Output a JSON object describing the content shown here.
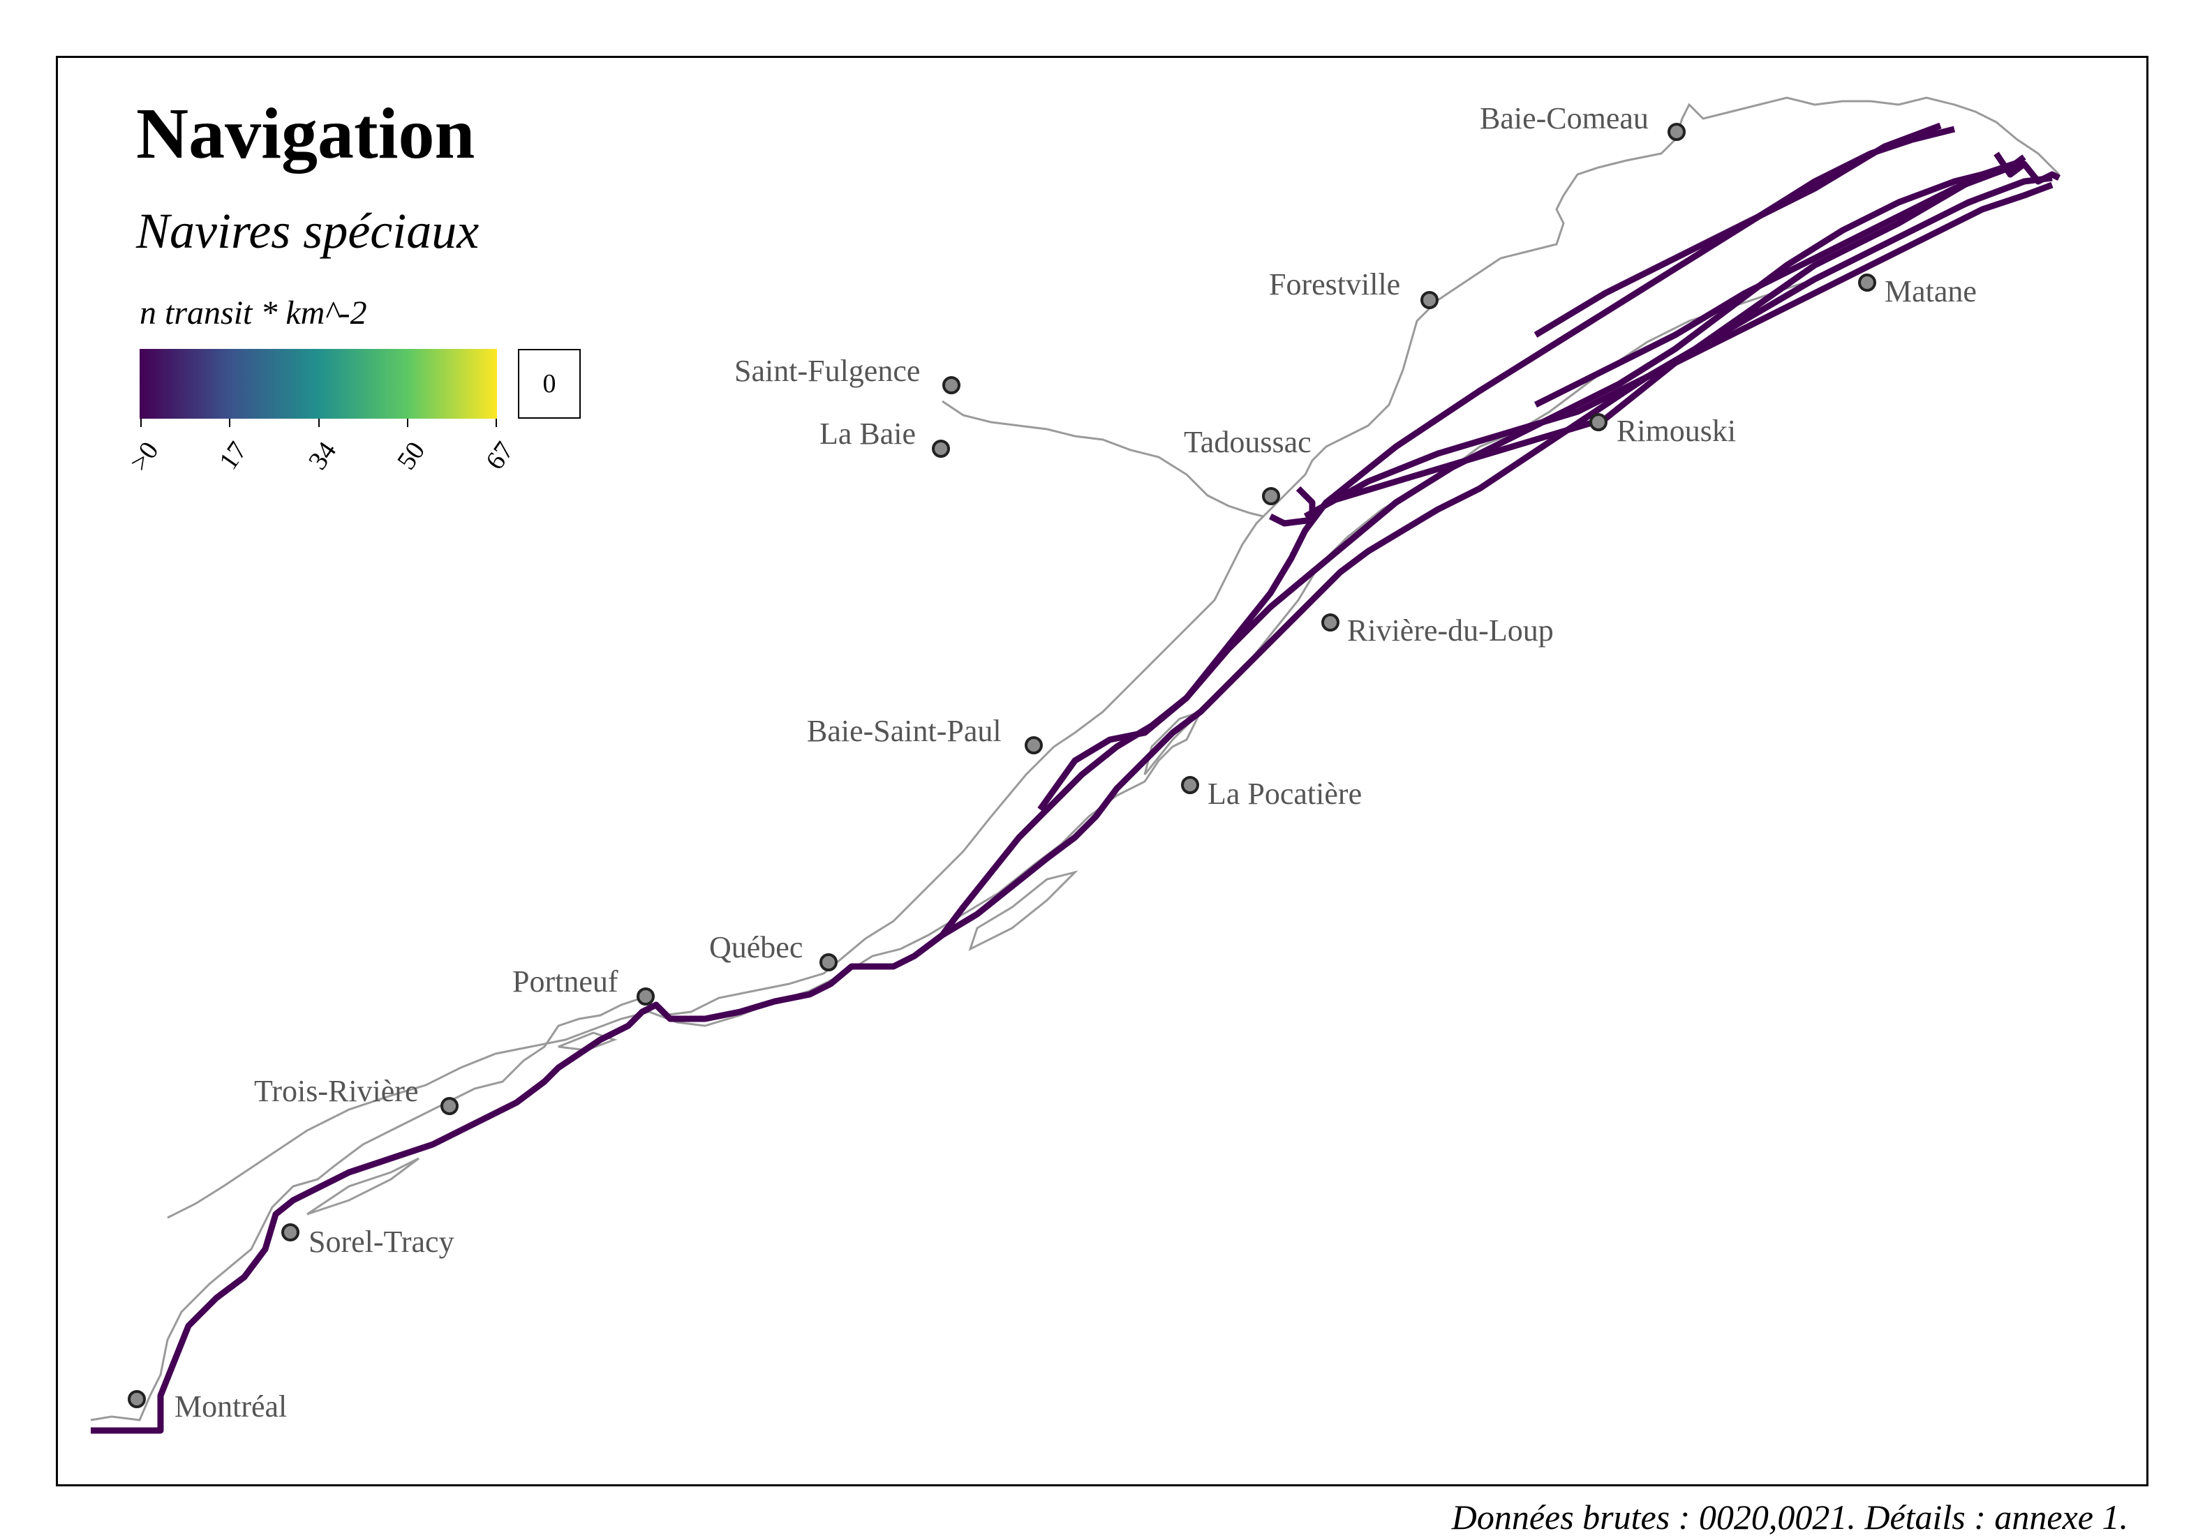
{
  "map": {
    "title": "Navigation",
    "subtitle": "Navires spéciaux",
    "source": "Données brutes : 0020,0021. Détails : annexe 1."
  },
  "legend": {
    "title": "n transit * km^-2",
    "ticks": [
      ">0",
      "17",
      "34",
      "50",
      "67"
    ],
    "zero_label": "0",
    "palette": [
      "#440154",
      "#3b528b",
      "#21908d",
      "#5dc863",
      "#fde725"
    ]
  },
  "cities": [
    {
      "name": "Baie-Comeau",
      "icon": "city-marker-icon"
    },
    {
      "name": "Forestville",
      "icon": "city-marker-icon"
    },
    {
      "name": "Matane",
      "icon": "city-marker-icon"
    },
    {
      "name": "Saint-Fulgence",
      "icon": "city-marker-icon"
    },
    {
      "name": "La Baie",
      "icon": "city-marker-icon"
    },
    {
      "name": "Tadoussac",
      "icon": "city-marker-icon"
    },
    {
      "name": "Rimouski",
      "icon": "city-marker-icon"
    },
    {
      "name": "Rivière-du-Loup",
      "icon": "city-marker-icon"
    },
    {
      "name": "Baie-Saint-Paul",
      "icon": "city-marker-icon"
    },
    {
      "name": "La Pocatière",
      "icon": "city-marker-icon"
    },
    {
      "name": "Québec",
      "icon": "city-marker-icon"
    },
    {
      "name": "Portneuf",
      "icon": "city-marker-icon"
    },
    {
      "name": "Trois-Rivière",
      "icon": "city-marker-icon"
    },
    {
      "name": "Sorel-Tracy",
      "icon": "city-marker-icon"
    },
    {
      "name": "Montréal",
      "icon": "city-marker-icon"
    }
  ],
  "colors": {
    "track": "#440154",
    "shoreline": "#9a9a9a",
    "marker_fill": "#8c8c8c"
  }
}
